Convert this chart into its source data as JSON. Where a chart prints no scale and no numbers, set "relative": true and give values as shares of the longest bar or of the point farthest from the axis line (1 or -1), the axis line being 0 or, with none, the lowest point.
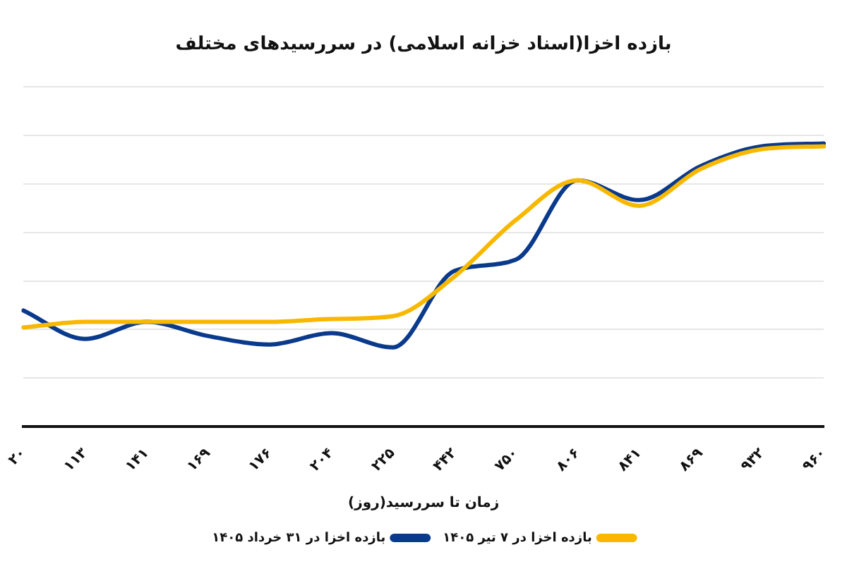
{
  "chart_data": {
    "type": "line",
    "title": "بازده اخزا(اسناد خزانه اسلامی) در سررسیدهای مختلف",
    "xlabel": "زمان تا سررسید(روز)",
    "categories": [
      "۲۰",
      "۱۱۳",
      "۱۴۱",
      "۱۶۹",
      "۱۷۶",
      "۲۰۴",
      "۲۲۵",
      "۴۴۲",
      "۷۵۰",
      "۸۰۶",
      "۸۴۱",
      "۸۶۹",
      "۹۳۲",
      "۹۶۰"
    ],
    "relative": true,
    "grid": "y",
    "legend": "bottom",
    "marker": "none",
    "line_style": "solid",
    "series": [
      {
        "name": "بازده اخزا در ۷ تیر ۱۴۰۵",
        "color": "#f8b800",
        "values": [
          0.35,
          0.37,
          0.37,
          0.37,
          0.37,
          0.38,
          0.39,
          0.53,
          0.73,
          0.87,
          0.78,
          0.91,
          0.98,
          0.99
        ]
      },
      {
        "name": "بازده اخزا در ۳۱ خرداد ۱۴۰۵",
        "color": "#0a3a8c",
        "values": [
          0.41,
          0.31,
          0.37,
          0.32,
          0.29,
          0.33,
          0.28,
          0.55,
          0.59,
          0.87,
          0.8,
          0.92,
          0.99,
          1
        ]
      }
    ]
  }
}
